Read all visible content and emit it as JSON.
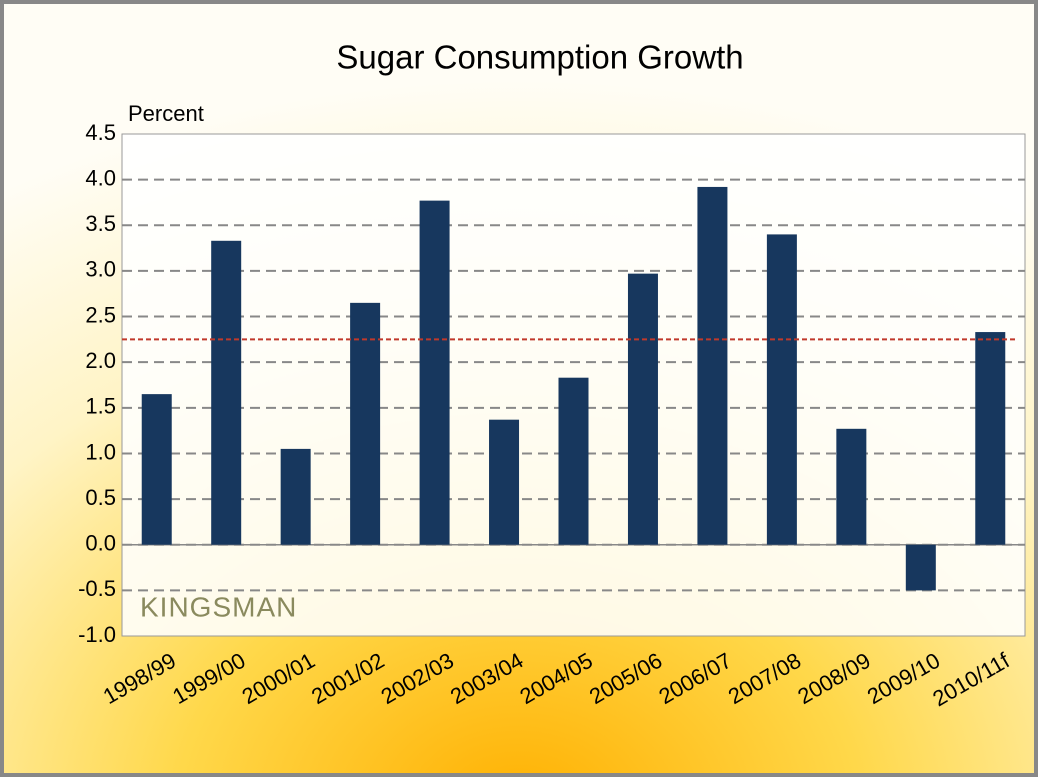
{
  "chart_data": {
    "type": "bar",
    "title": "Sugar Consumption Growth",
    "y_label": "Percent",
    "watermark": "KINGSMAN",
    "categories": [
      "1998/99",
      "1999/00",
      "2000/01",
      "2001/02",
      "2002/03",
      "2003/04",
      "2004/05",
      "2005/06",
      "2006/07",
      "2007/08",
      "2008/09",
      "2009/10",
      "2010/11f"
    ],
    "values": [
      1.65,
      3.33,
      1.05,
      2.65,
      3.77,
      1.37,
      1.83,
      2.97,
      3.92,
      3.4,
      1.27,
      -0.5,
      2.33
    ],
    "color": "#17375e",
    "reference_line": 2.25,
    "reference_color": "#c0392b",
    "ylim": [
      -1,
      4.5
    ],
    "yticks": [
      {
        "value": -1,
        "label": "-1.0"
      },
      -0.5,
      {
        "value": 0,
        "label": "0.0"
      },
      0.5,
      {
        "value": 1,
        "label": "1.0"
      },
      1.5,
      {
        "value": 2,
        "label": "2.0"
      },
      2.5,
      {
        "value": 3,
        "label": "3.0"
      },
      3.5,
      {
        "value": 4,
        "label": "4.0"
      },
      4.5
    ],
    "grid": true
  }
}
